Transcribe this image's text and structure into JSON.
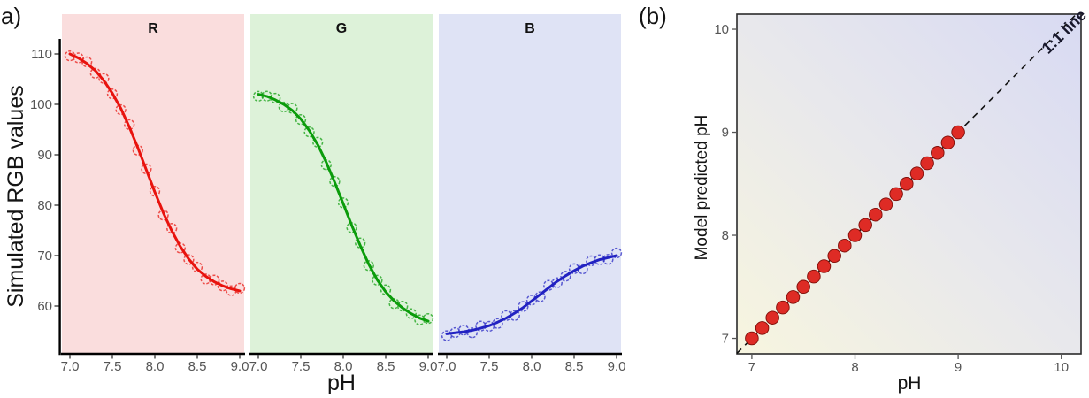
{
  "figure": {
    "panels": [
      {
        "label": "a)"
      },
      {
        "label": "(b)"
      }
    ]
  },
  "chart_data": [
    {
      "panel": "a",
      "type": "line",
      "title": "",
      "xlabel": "pH",
      "ylabel": "Simulated RGB values",
      "x": [
        7.0,
        7.1,
        7.2,
        7.3,
        7.4,
        7.5,
        7.6,
        7.7,
        7.8,
        7.9,
        8.0,
        8.1,
        8.2,
        8.3,
        8.4,
        8.5,
        8.6,
        8.7,
        8.8,
        8.9,
        9.0
      ],
      "xticks": [
        "7.0",
        "7.5",
        "8.0",
        "8.5",
        "9.0"
      ],
      "yticks": [
        "60",
        "70",
        "80",
        "90",
        "100",
        "110"
      ],
      "xlim": [
        6.91,
        9.06
      ],
      "ylim": [
        51,
        112.6
      ],
      "grid": false,
      "legend": "none",
      "marker": "open-circle",
      "facets": [
        {
          "label": "R",
          "series_color": "#e8130e",
          "panel_bg": "#fadddd",
          "values": [
            110,
            109.2,
            108.1,
            106.7,
            104.7,
            102.2,
            99.2,
            95.5,
            91.4,
            87,
            82.6,
            78.5,
            74.9,
            71.8,
            69.3,
            67.3,
            65.9,
            64.8,
            64,
            63.4,
            63
          ]
        },
        {
          "label": "G",
          "series_color": "#0b9c0b",
          "panel_bg": "#ddf2d9",
          "values": [
            102,
            101.6,
            100.9,
            100,
            98.8,
            97.1,
            94.8,
            92,
            88.5,
            84.5,
            80.3,
            76,
            72,
            68.3,
            65.2,
            62.8,
            61,
            59.6,
            58.5,
            57.6,
            57
          ]
        },
        {
          "label": "B",
          "series_color": "#2222c2",
          "panel_bg": "#dfe3f5",
          "values": [
            54.5,
            54.7,
            54.9,
            55.2,
            55.6,
            56.1,
            56.8,
            57.6,
            58.6,
            59.7,
            61,
            62.3,
            63.6,
            64.9,
            66,
            67,
            67.9,
            68.6,
            69.2,
            69.6,
            70
          ]
        }
      ]
    },
    {
      "panel": "b",
      "type": "scatter",
      "title": "",
      "xlabel": "pH",
      "ylabel": "Model predicted pH",
      "xticks": [
        "7",
        "8",
        "9",
        "10"
      ],
      "yticks": [
        "7",
        "8",
        "9",
        "10"
      ],
      "xlim": [
        6.855,
        10.19
      ],
      "ylim": [
        6.85,
        10.14
      ],
      "grid": false,
      "legend": "none",
      "x": [
        7.0,
        7.1,
        7.2,
        7.3,
        7.4,
        7.5,
        7.6,
        7.7,
        7.8,
        7.9,
        8.0,
        8.1,
        8.2,
        8.3,
        8.4,
        8.5,
        8.6,
        8.7,
        8.8,
        8.9,
        9.0
      ],
      "y": [
        7.0,
        7.1,
        7.2,
        7.3,
        7.4,
        7.5,
        7.6,
        7.7,
        7.8,
        7.9,
        8.0,
        8.1,
        8.2,
        8.3,
        8.4,
        8.5,
        8.6,
        8.7,
        8.8,
        8.9,
        9.0
      ],
      "point_color": "#de2b25",
      "point_edge_color": "#7e0e08",
      "reference_line": {
        "label": "1:1 line",
        "style": "dashed",
        "color": "#111111",
        "slope": 1,
        "intercept": 0
      },
      "bg_gradient": {
        "direction": "bottomleft-to-topright",
        "stops": [
          "#f7f5df",
          "#e8e8ec",
          "#d8daf3"
        ]
      }
    }
  ]
}
